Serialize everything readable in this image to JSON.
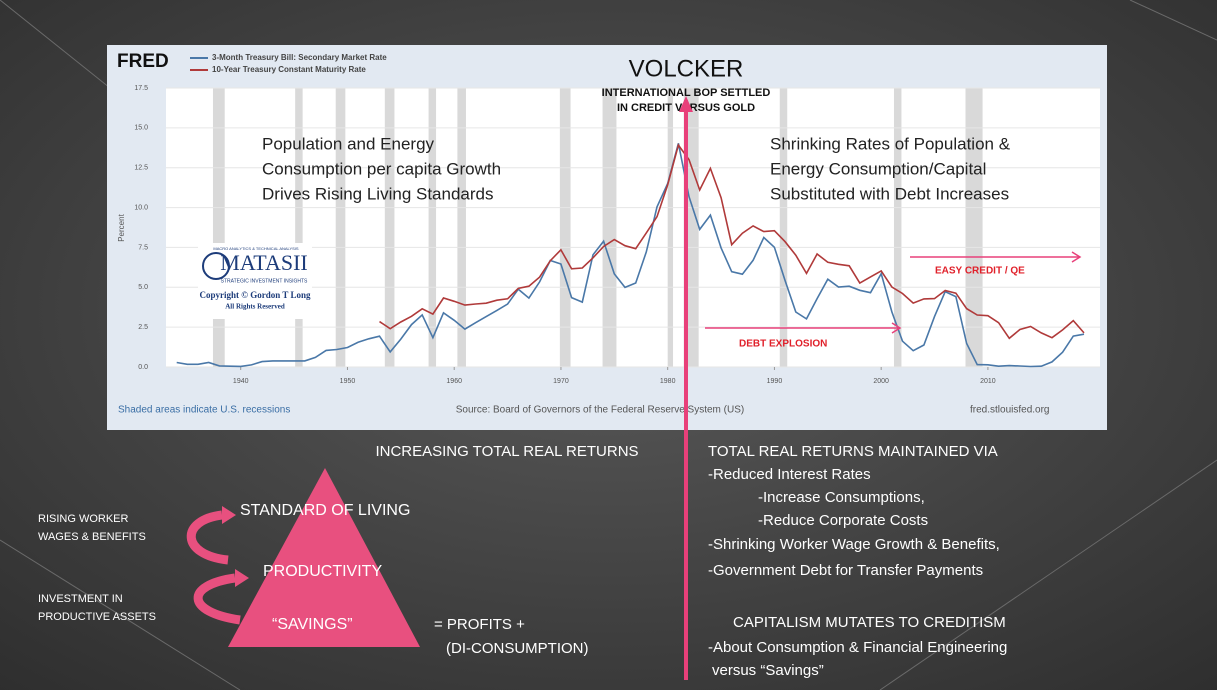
{
  "chart_data": {
    "type": "line",
    "title": "FRED",
    "y_label": "Percent",
    "footer_left": "Shaded areas indicate U.S. recessions",
    "footer_center": "Source: Board of Governors of the Federal Reserve System (US)",
    "footer_right": "fred.stlouisfed.org",
    "x": [
      1934,
      1935,
      1936,
      1937,
      1938,
      1939,
      1940,
      1941,
      1942,
      1943,
      1944,
      1945,
      1946,
      1947,
      1948,
      1949,
      1950,
      1951,
      1952,
      1953,
      1954,
      1955,
      1956,
      1957,
      1958,
      1959,
      1960,
      1961,
      1962,
      1963,
      1964,
      1965,
      1966,
      1967,
      1968,
      1969,
      1970,
      1971,
      1972,
      1973,
      1974,
      1975,
      1976,
      1977,
      1978,
      1979,
      1980,
      1981,
      1982,
      1983,
      1984,
      1985,
      1986,
      1987,
      1988,
      1989,
      1990,
      1991,
      1992,
      1993,
      1994,
      1995,
      1996,
      1997,
      1998,
      1999,
      2000,
      2001,
      2002,
      2003,
      2004,
      2005,
      2006,
      2007,
      2008,
      2009,
      2010,
      2011,
      2012,
      2013,
      2014,
      2015,
      2016,
      2017,
      2018,
      2019
    ],
    "series": [
      {
        "name": "3-Month Treasury Bill: Secondary Market Rate",
        "color": "#4a78a8",
        "values": [
          0.28,
          0.17,
          0.17,
          0.28,
          0.07,
          0.05,
          0.04,
          0.13,
          0.34,
          0.38,
          0.38,
          0.38,
          0.38,
          0.6,
          1.04,
          1.1,
          1.22,
          1.55,
          1.77,
          1.93,
          0.95,
          1.75,
          2.66,
          3.27,
          1.84,
          3.4,
          2.93,
          2.38,
          2.78,
          3.16,
          3.55,
          3.95,
          4.88,
          4.32,
          5.34,
          6.68,
          6.46,
          4.35,
          4.07,
          7.04,
          7.89,
          5.84,
          4.99,
          5.27,
          7.22,
          10.04,
          11.51,
          14.03,
          10.69,
          8.63,
          9.53,
          7.47,
          5.98,
          5.82,
          6.69,
          8.12,
          7.51,
          5.42,
          3.45,
          3.02,
          4.29,
          5.51,
          5.02,
          5.07,
          4.81,
          4.66,
          5.85,
          3.45,
          1.62,
          1.02,
          1.38,
          3.16,
          4.73,
          4.41,
          1.48,
          0.15,
          0.14,
          0.05,
          0.09,
          0.06,
          0.03,
          0.05,
          0.32,
          0.93,
          1.94,
          2.06
        ]
      },
      {
        "name": "10-Year Treasury Constant Maturity Rate",
        "color": "#b03a3a",
        "values": [
          null,
          null,
          null,
          null,
          null,
          null,
          null,
          null,
          null,
          null,
          null,
          null,
          null,
          null,
          null,
          null,
          null,
          null,
          null,
          2.85,
          2.4,
          2.82,
          3.18,
          3.65,
          3.32,
          4.33,
          4.12,
          3.88,
          3.95,
          4.0,
          4.19,
          4.28,
          4.93,
          5.07,
          5.64,
          6.67,
          7.35,
          6.16,
          6.21,
          6.85,
          7.56,
          7.99,
          7.61,
          7.42,
          8.41,
          9.43,
          11.43,
          13.92,
          13.01,
          11.1,
          12.46,
          10.62,
          7.67,
          8.39,
          8.85,
          8.49,
          8.55,
          7.86,
          7.01,
          5.87,
          7.09,
          6.57,
          6.44,
          6.35,
          5.26,
          5.65,
          6.03,
          5.02,
          4.61,
          4.01,
          4.27,
          4.29,
          4.8,
          4.63,
          3.66,
          3.26,
          3.22,
          2.78,
          1.8,
          2.35,
          2.54,
          2.14,
          1.84,
          2.33,
          2.91,
          2.14
        ]
      }
    ],
    "recessions": [
      [
        1937.4,
        1938.5
      ],
      [
        1945.1,
        1945.8
      ],
      [
        1948.9,
        1949.8
      ],
      [
        1953.5,
        1954.4
      ],
      [
        1957.6,
        1958.3
      ],
      [
        1960.3,
        1961.1
      ],
      [
        1969.9,
        1970.9
      ],
      [
        1973.9,
        1975.2
      ],
      [
        1980.0,
        1980.5
      ],
      [
        1981.5,
        1982.9
      ],
      [
        1990.5,
        1991.2
      ],
      [
        2001.2,
        2001.9
      ],
      [
        2007.9,
        2009.5
      ]
    ],
    "xlim": [
      1933,
      2020.5
    ],
    "xticks": [
      1940,
      1950,
      1960,
      1970,
      1980,
      1990,
      2000,
      2010
    ],
    "ylim": [
      0,
      17.5
    ],
    "yticks": [
      {
        "value": 0,
        "label": "0.0"
      },
      2.5,
      {
        "value": 5,
        "label": "5.0"
      },
      7.5,
      {
        "value": 10,
        "label": "10.0"
      },
      12.5,
      {
        "value": 15,
        "label": "15.0"
      },
      17.5
    ],
    "annotations": [
      "VOLCKER",
      "INTERNATIONAL BOP SETTLED",
      "IN CREDIT VERSUS GOLD",
      "Population and Energy",
      "Consumption per capita Growth",
      "Drives Rising Living Standards",
      "Shrinking Rates of Population &",
      "Energy Consumption/Capital",
      "Substituted with Debt Increases",
      "EASY CREDIT / QE",
      "DEBT EXPLOSION"
    ],
    "logo": [
      "MACRO ANALYTICS & TECHNICAL ANALYSIS",
      "MATASII",
      "STRATEGIC INVESTMENT INSIGHTS",
      "Copyright © Gordon T Long",
      "All Rights Reserved"
    ]
  },
  "slide": {
    "left_heading": "INCREASING TOTAL REAL RETURNS",
    "right_lines": [
      "TOTAL REAL RETURNS MAINTAINED VIA",
      "-Reduced Interest Rates",
      "-Increase Consumptions,",
      "-Reduce Corporate Costs",
      "-Shrinking Worker Wage Growth & Benefits,",
      "-Government Debt for Transfer Payments"
    ],
    "right_lines2": [
      "CAPITALISM MUTATES TO CREDITISM",
      "-About Consumption  & Financial Engineering",
      "versus “Savings”"
    ],
    "pyramid": [
      "STANDARD OF LIVING",
      "PRODUCTIVITY",
      "“SAVINGS”"
    ],
    "equation": [
      "= PROFITS +",
      "(DI-CONSUMPTION)"
    ],
    "side_labels": [
      "RISING WORKER",
      "WAGES & BENEFITS",
      "INVESTMENT IN",
      "PRODUCTIVE ASSETS"
    ]
  }
}
